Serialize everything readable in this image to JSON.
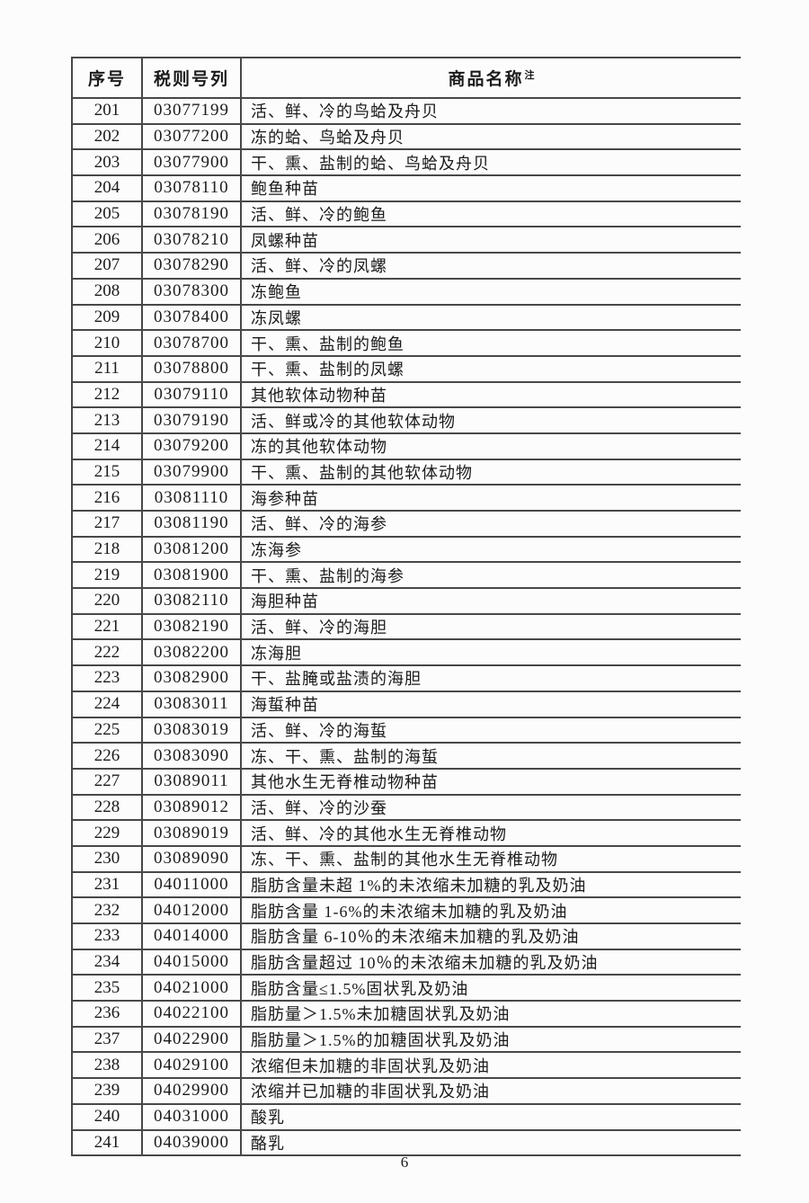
{
  "page": {
    "number": "6"
  },
  "table": {
    "headers": {
      "no": "序号",
      "code": "税则号列",
      "name": "商品名称",
      "name_note": "注"
    },
    "rows": [
      {
        "no": "201",
        "code": "03077199",
        "name": "活、鲜、冷的鸟蛤及舟贝"
      },
      {
        "no": "202",
        "code": "03077200",
        "name": "冻的蛤、鸟蛤及舟贝"
      },
      {
        "no": "203",
        "code": "03077900",
        "name": "干、熏、盐制的蛤、鸟蛤及舟贝"
      },
      {
        "no": "204",
        "code": "03078110",
        "name": "鲍鱼种苗"
      },
      {
        "no": "205",
        "code": "03078190",
        "name": "活、鲜、冷的鲍鱼"
      },
      {
        "no": "206",
        "code": "03078210",
        "name": "凤螺种苗"
      },
      {
        "no": "207",
        "code": "03078290",
        "name": "活、鲜、冷的凤螺"
      },
      {
        "no": "208",
        "code": "03078300",
        "name": "冻鲍鱼"
      },
      {
        "no": "209",
        "code": "03078400",
        "name": "冻凤螺"
      },
      {
        "no": "210",
        "code": "03078700",
        "name": "干、熏、盐制的鲍鱼"
      },
      {
        "no": "211",
        "code": "03078800",
        "name": "干、熏、盐制的凤螺"
      },
      {
        "no": "212",
        "code": "03079110",
        "name": "其他软体动物种苗"
      },
      {
        "no": "213",
        "code": "03079190",
        "name": "活、鲜或冷的其他软体动物"
      },
      {
        "no": "214",
        "code": "03079200",
        "name": "冻的其他软体动物"
      },
      {
        "no": "215",
        "code": "03079900",
        "name": "干、熏、盐制的其他软体动物"
      },
      {
        "no": "216",
        "code": "03081110",
        "name": "海参种苗"
      },
      {
        "no": "217",
        "code": "03081190",
        "name": "活、鲜、冷的海参"
      },
      {
        "no": "218",
        "code": "03081200",
        "name": "冻海参"
      },
      {
        "no": "219",
        "code": "03081900",
        "name": "干、熏、盐制的海参"
      },
      {
        "no": "220",
        "code": "03082110",
        "name": "海胆种苗"
      },
      {
        "no": "221",
        "code": "03082190",
        "name": "活、鲜、冷的海胆"
      },
      {
        "no": "222",
        "code": "03082200",
        "name": "冻海胆"
      },
      {
        "no": "223",
        "code": "03082900",
        "name": "干、盐腌或盐渍的海胆"
      },
      {
        "no": "224",
        "code": "03083011",
        "name": "海蜇种苗"
      },
      {
        "no": "225",
        "code": "03083019",
        "name": "活、鲜、冷的海蜇"
      },
      {
        "no": "226",
        "code": "03083090",
        "name": "冻、干、熏、盐制的海蜇"
      },
      {
        "no": "227",
        "code": "03089011",
        "name": "其他水生无脊椎动物种苗"
      },
      {
        "no": "228",
        "code": "03089012",
        "name": "活、鲜、冷的沙蚕"
      },
      {
        "no": "229",
        "code": "03089019",
        "name": "活、鲜、冷的其他水生无脊椎动物"
      },
      {
        "no": "230",
        "code": "03089090",
        "name": "冻、干、熏、盐制的其他水生无脊椎动物"
      },
      {
        "no": "231",
        "code": "04011000",
        "name": "脂肪含量未超 1%的未浓缩未加糖的乳及奶油"
      },
      {
        "no": "232",
        "code": "04012000",
        "name": "脂肪含量 1-6%的未浓缩未加糖的乳及奶油"
      },
      {
        "no": "233",
        "code": "04014000",
        "name": "脂肪含量 6-10％的未浓缩未加糖的乳及奶油"
      },
      {
        "no": "234",
        "code": "04015000",
        "name": "脂肪含量超过 10％的未浓缩未加糖的乳及奶油"
      },
      {
        "no": "235",
        "code": "04021000",
        "name": "脂肪含量≤1.5%固状乳及奶油"
      },
      {
        "no": "236",
        "code": "04022100",
        "name": "脂肪量＞1.5%未加糖固状乳及奶油"
      },
      {
        "no": "237",
        "code": "04022900",
        "name": "脂肪量＞1.5%的加糖固状乳及奶油"
      },
      {
        "no": "238",
        "code": "04029100",
        "name": "浓缩但未加糖的非固状乳及奶油"
      },
      {
        "no": "239",
        "code": "04029900",
        "name": "浓缩并已加糖的非固状乳及奶油"
      },
      {
        "no": "240",
        "code": "04031000",
        "name": "酸乳"
      },
      {
        "no": "241",
        "code": "04039000",
        "name": "酪乳"
      }
    ]
  }
}
